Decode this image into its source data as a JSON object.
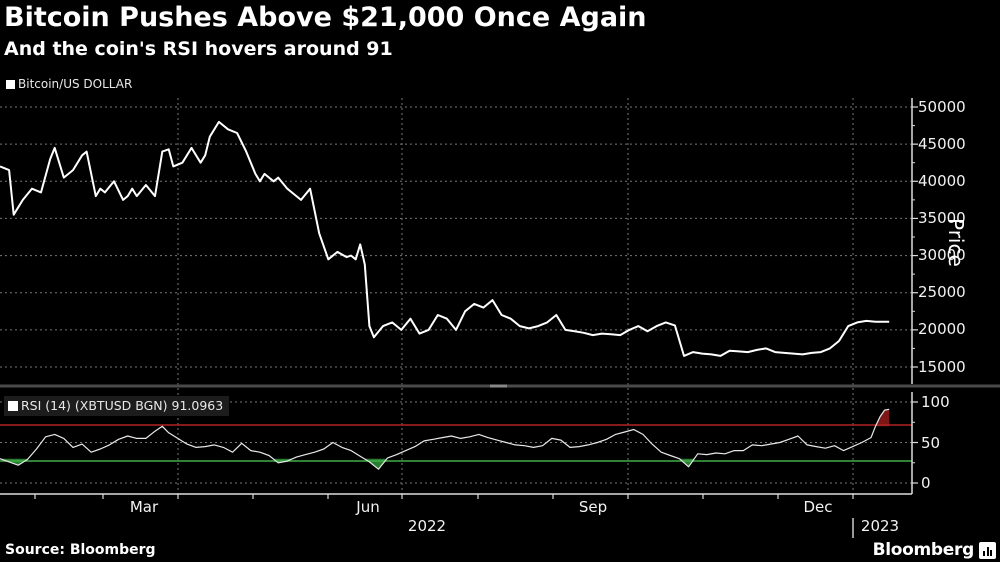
{
  "header": {
    "title": "Bitcoin Pushes Above $21,000 Once Again",
    "subtitle": "And the coin's RSI hovers around 91"
  },
  "price_panel": {
    "legend": "Bitcoin/US DOLLAR",
    "axis_label": "Price",
    "y_ticks": [
      "50000",
      "45000",
      "40000",
      "35000",
      "30000",
      "25000",
      "20000",
      "15000"
    ]
  },
  "rsi_panel": {
    "legend": "RSI (14) (XBTUSD BGN) 91.0963",
    "y_ticks": [
      "100",
      "50",
      "0"
    ],
    "overbought": 70,
    "oversold": 30,
    "colors": {
      "overbought_line": "#b22222",
      "oversold_line": "#3fae49",
      "overbought_fill": "#8b1a1a",
      "oversold_fill": "#2e8b35"
    }
  },
  "x_axis": {
    "months": [
      "Mar",
      "Jun",
      "Sep",
      "Dec"
    ],
    "years": [
      "2022",
      "2023"
    ]
  },
  "footer": {
    "source": "Source: Bloomberg",
    "brand": "Bloomberg"
  },
  "chart_data": [
    {
      "type": "line",
      "title": "Bitcoin Pushes Above $21,000 Once Again",
      "subtitle": "And the coin's RSI hovers around 91",
      "series_name": "Bitcoin/US DOLLAR",
      "xlabel": "",
      "ylabel": "Price",
      "ylim": [
        13000,
        51000
      ],
      "y_ticks": [
        15000,
        20000,
        25000,
        30000,
        35000,
        40000,
        45000,
        50000
      ],
      "x_ticks": [
        "Mar",
        "Jun",
        "Sep",
        "Dec"
      ],
      "x_range": "2022-01-10 to 2023-01-12",
      "grid": true,
      "x": [
        0.0,
        0.01,
        0.015,
        0.025,
        0.035,
        0.045,
        0.055,
        0.06,
        0.07,
        0.08,
        0.09,
        0.095,
        0.105,
        0.11,
        0.115,
        0.125,
        0.135,
        0.14,
        0.145,
        0.15,
        0.16,
        0.17,
        0.178,
        0.185,
        0.19,
        0.2,
        0.21,
        0.22,
        0.225,
        0.23,
        0.24,
        0.25,
        0.26,
        0.27,
        0.28,
        0.285,
        0.29,
        0.3,
        0.305,
        0.315,
        0.32,
        0.33,
        0.34,
        0.35,
        0.36,
        0.37,
        0.38,
        0.385,
        0.39,
        0.395,
        0.4,
        0.405,
        0.41,
        0.42,
        0.43,
        0.44,
        0.45,
        0.46,
        0.47,
        0.48,
        0.49,
        0.5,
        0.51,
        0.52,
        0.53,
        0.54,
        0.55,
        0.56,
        0.57,
        0.58,
        0.59,
        0.6,
        0.61,
        0.62,
        0.63,
        0.64,
        0.65,
        0.66,
        0.67,
        0.68,
        0.69,
        0.7,
        0.71,
        0.72,
        0.73,
        0.74,
        0.75,
        0.76,
        0.77,
        0.78,
        0.79,
        0.8,
        0.81,
        0.82,
        0.83,
        0.84,
        0.85,
        0.86,
        0.87,
        0.88,
        0.89,
        0.9,
        0.91,
        0.92,
        0.93,
        0.94,
        0.95,
        0.96,
        0.965,
        0.97,
        0.975
      ],
      "values": [
        42000,
        41500,
        35500,
        37500,
        39000,
        38500,
        43000,
        44500,
        40500,
        41500,
        43500,
        44000,
        38000,
        39000,
        38500,
        40000,
        37500,
        38000,
        39000,
        38000,
        39500,
        38000,
        44000,
        44300,
        42000,
        42500,
        44500,
        42500,
        43500,
        46000,
        48000,
        47000,
        46500,
        44000,
        41000,
        40000,
        41000,
        40000,
        40500,
        39000,
        38500,
        37500,
        39000,
        33000,
        29500,
        30500,
        29800,
        30000,
        29500,
        31500,
        28800,
        20500,
        19000,
        20500,
        21000,
        20000,
        21500,
        19500,
        20000,
        22000,
        21500,
        20000,
        22500,
        23500,
        23000,
        24000,
        22000,
        21500,
        20500,
        20200,
        20500,
        21000,
        22000,
        20000,
        19800,
        19600,
        19300,
        19500,
        19400,
        19300,
        20000,
        20500,
        19800,
        20500,
        21000,
        20600,
        16500,
        17000,
        16800,
        16700,
        16500,
        17200,
        17100,
        17000,
        17300,
        17500,
        17000,
        16900,
        16800,
        16700,
        16900,
        17000,
        17500,
        18500,
        20500,
        21000,
        21200,
        21100,
        21100,
        21100,
        21100
      ],
      "rsi": {
        "name": "RSI (14) (XBTUSD BGN)",
        "last_value": 91.0963,
        "ylim": [
          0,
          100
        ],
        "y_ticks": [
          0,
          50,
          100
        ],
        "overbought": 70,
        "oversold": 30,
        "x": [
          0.0,
          0.01,
          0.02,
          0.03,
          0.04,
          0.05,
          0.06,
          0.07,
          0.08,
          0.09,
          0.1,
          0.11,
          0.12,
          0.13,
          0.14,
          0.15,
          0.16,
          0.17,
          0.178,
          0.185,
          0.195,
          0.205,
          0.215,
          0.225,
          0.235,
          0.245,
          0.255,
          0.265,
          0.275,
          0.285,
          0.295,
          0.305,
          0.315,
          0.325,
          0.335,
          0.345,
          0.355,
          0.365,
          0.375,
          0.385,
          0.395,
          0.405,
          0.415,
          0.425,
          0.435,
          0.445,
          0.455,
          0.465,
          0.475,
          0.485,
          0.495,
          0.505,
          0.515,
          0.525,
          0.535,
          0.545,
          0.555,
          0.565,
          0.575,
          0.585,
          0.595,
          0.605,
          0.615,
          0.625,
          0.635,
          0.645,
          0.655,
          0.665,
          0.675,
          0.685,
          0.695,
          0.705,
          0.715,
          0.725,
          0.735,
          0.745,
          0.755,
          0.765,
          0.775,
          0.785,
          0.795,
          0.805,
          0.815,
          0.825,
          0.835,
          0.845,
          0.855,
          0.865,
          0.875,
          0.885,
          0.895,
          0.905,
          0.915,
          0.925,
          0.935,
          0.945,
          0.955,
          0.96,
          0.965,
          0.97,
          0.975
        ],
        "values": [
          30,
          26,
          22,
          29,
          42,
          57,
          60,
          55,
          44,
          48,
          38,
          42,
          47,
          54,
          58,
          55,
          55,
          64,
          70,
          62,
          55,
          48,
          44,
          45,
          47,
          44,
          38,
          49,
          40,
          38,
          34,
          25,
          27,
          32,
          35,
          38,
          42,
          50,
          44,
          40,
          33,
          26,
          17,
          31,
          35,
          40,
          45,
          52,
          54,
          56,
          58,
          55,
          57,
          60,
          56,
          53,
          50,
          47,
          46,
          44,
          46,
          55,
          53,
          44,
          45,
          47,
          50,
          54,
          60,
          63,
          66,
          60,
          48,
          38,
          34,
          30,
          20,
          36,
          35,
          37,
          36,
          40,
          40,
          47,
          46,
          48,
          50,
          54,
          58,
          47,
          45,
          43,
          46,
          40,
          45,
          50,
          56,
          70,
          82,
          90,
          91
        ]
      }
    }
  ]
}
